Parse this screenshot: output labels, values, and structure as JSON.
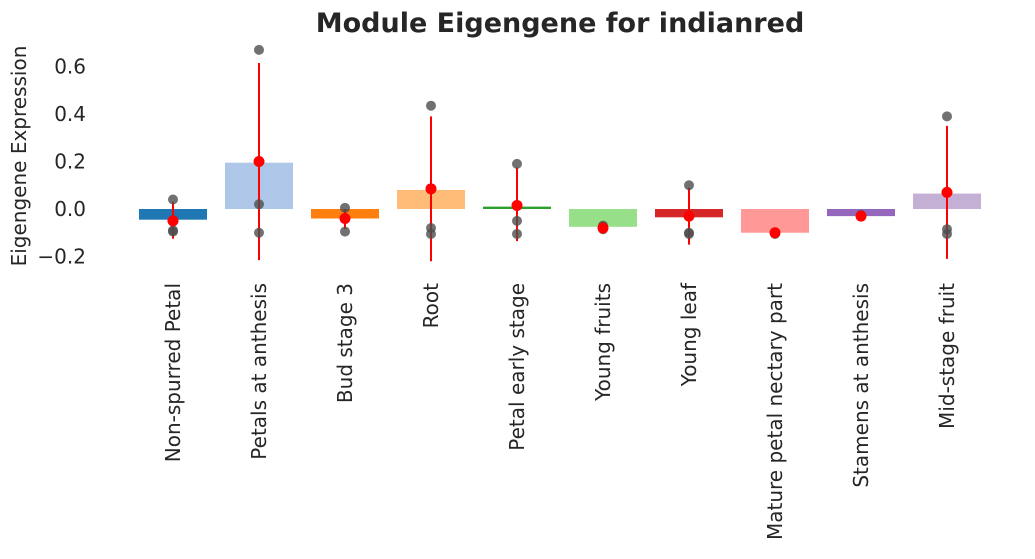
{
  "chart_data": {
    "type": "bar",
    "title": "Module Eigengene for indianred",
    "xlabel": "",
    "ylabel": "Eigengene Expression",
    "ylim": [
      -0.27,
      0.7
    ],
    "yticks": [
      -0.2,
      0.0,
      0.2,
      0.4,
      0.6
    ],
    "ytick_labels": [
      "−0.2",
      "0.0",
      "0.2",
      "0.4",
      "0.6"
    ],
    "grid": false,
    "legend": "none",
    "categories": [
      "Non-spurred Petal",
      "Petals at anthesis",
      "Bud stage 3",
      "Root",
      "Petal early stage",
      "Young fruits",
      "Young leaf",
      "Mature petal nectary part",
      "Stamens at anthesis",
      "Mid-stage fruit"
    ],
    "values": [
      -0.045,
      0.195,
      -0.04,
      0.08,
      0.01,
      -0.075,
      -0.035,
      -0.1,
      -0.03,
      0.065
    ],
    "mean_points": [
      -0.05,
      0.2,
      -0.04,
      0.085,
      0.015,
      -0.08,
      -0.03,
      -0.1,
      -0.03,
      0.07
    ],
    "error_bars": [
      [
        -0.125,
        0.03
      ],
      [
        -0.215,
        0.615
      ],
      [
        -0.085,
        0.0
      ],
      [
        -0.22,
        0.39
      ],
      [
        -0.135,
        0.175
      ],
      [
        -0.085,
        -0.07
      ],
      [
        -0.15,
        0.09
      ],
      [
        -0.105,
        -0.095
      ],
      [
        -0.035,
        -0.025
      ],
      [
        -0.21,
        0.35
      ]
    ],
    "samples": [
      [
        0.04,
        -0.09,
        -0.095
      ],
      [
        0.67,
        0.02,
        -0.1
      ],
      [
        0.005,
        -0.04,
        -0.095
      ],
      [
        0.435,
        -0.08,
        -0.105
      ],
      [
        0.19,
        -0.05,
        -0.105
      ],
      [
        -0.07,
        -0.075,
        -0.085
      ],
      [
        0.1,
        -0.1,
        -0.105
      ],
      [
        -0.1,
        -0.105,
        -0.1
      ],
      [
        -0.025,
        -0.03,
        -0.03
      ],
      [
        0.39,
        -0.085,
        -0.105
      ]
    ],
    "colors": [
      "#1f77b4",
      "#aec7e8",
      "#ff7f0e",
      "#ffbb78",
      "#2ca02c",
      "#98df8a",
      "#d62728",
      "#ff9896",
      "#9467bd",
      "#c5b0d5"
    ],
    "mean_color": "#ff0000",
    "sample_color": "#4d4d4d"
  }
}
